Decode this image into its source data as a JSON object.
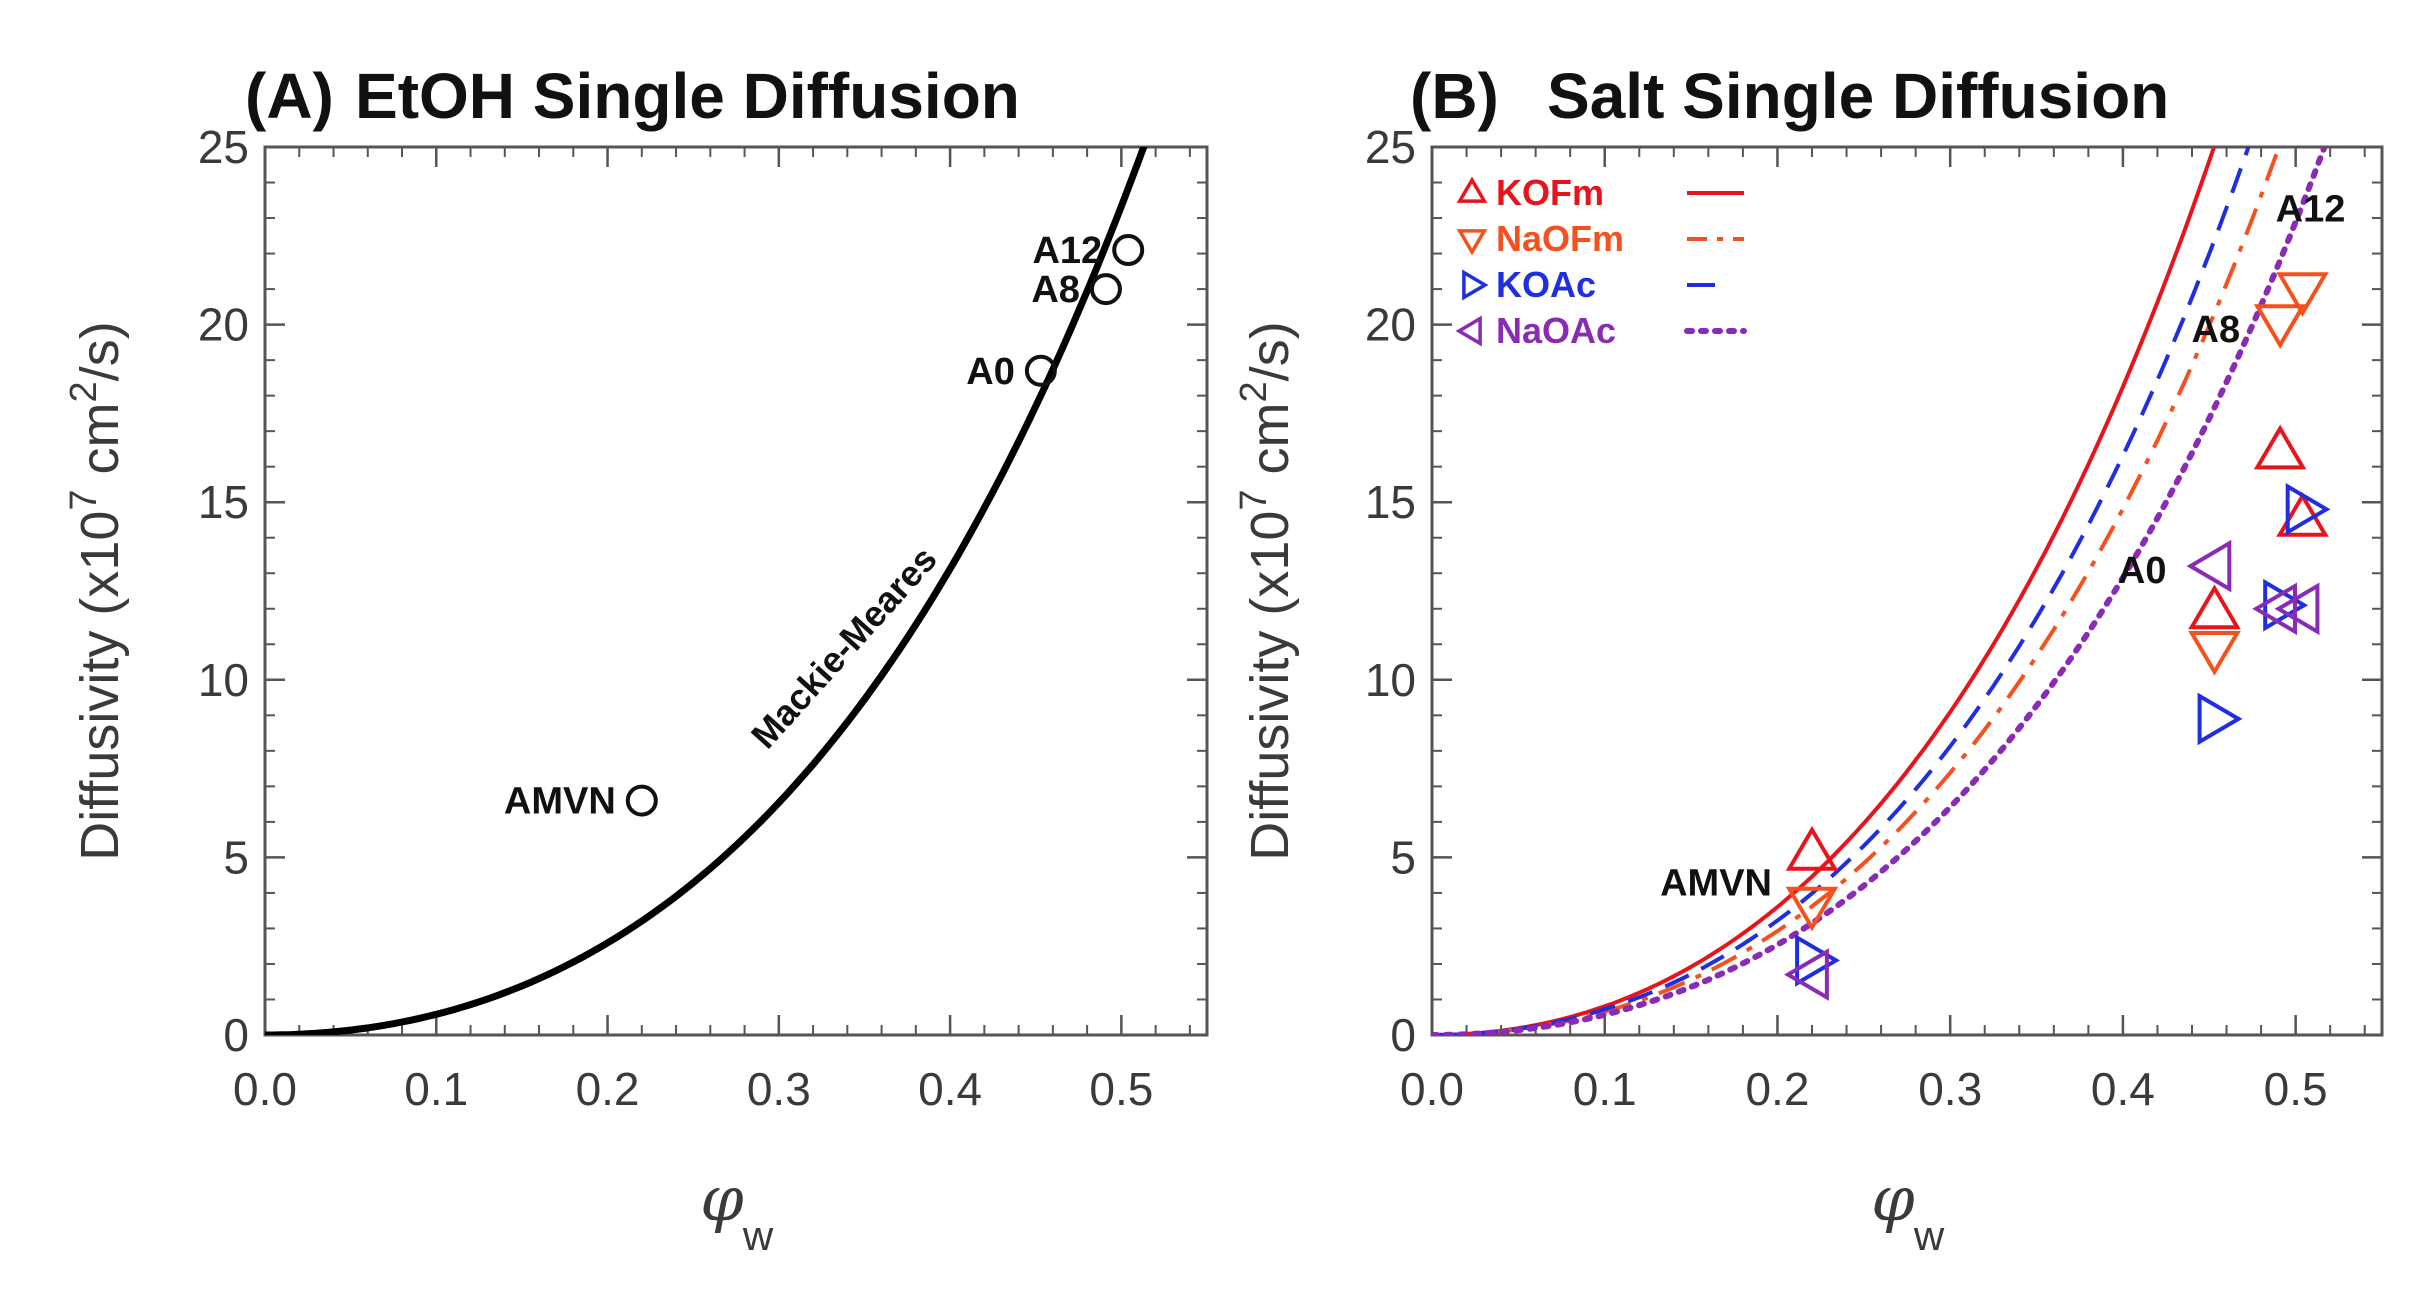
{
  "chart_data": [
    {
      "panel": "A",
      "type": "scatter",
      "title_tag": "(A)",
      "title": "EtOH Single Diffusion",
      "ylabel": "Diffusivity (x10",
      "ylabel_exp": "7",
      "ylabel_unit": "cm",
      "ylabel_unit_exp": "2",
      "ylabel_tail": "/s)",
      "xlabel_symbol": "φ",
      "xlabel_sub": "w",
      "xlim": [
        0,
        0.55
      ],
      "ylim": [
        0,
        25
      ],
      "xticks": [
        "0.0",
        "0.1",
        "0.2",
        "0.3",
        "0.4",
        "0.5"
      ],
      "xtick_values": [
        0,
        0.1,
        0.2,
        0.3,
        0.4,
        0.5
      ],
      "yticks": [
        "0",
        "5",
        "10",
        "15",
        "20",
        "25"
      ],
      "ytick_values": [
        0,
        5,
        10,
        15,
        20,
        25
      ],
      "points": [
        {
          "label": "AMVN",
          "x": 0.22,
          "y": 6.6
        },
        {
          "label": "A0",
          "x": 0.453,
          "y": 18.7
        },
        {
          "label": "A8",
          "x": 0.491,
          "y": 21.0
        },
        {
          "label": "A12",
          "x": 0.504,
          "y": 22.1
        }
      ],
      "curve": {
        "label": "Mackie-Meares",
        "color": "#000000",
        "coeff": 210
      }
    },
    {
      "panel": "B",
      "type": "scatter",
      "title_tag": "(B)",
      "title": "Salt Single Diffusion",
      "ylabel": "Diffusivity (x10",
      "ylabel_exp": "7",
      "ylabel_unit": "cm",
      "ylabel_unit_exp": "2",
      "ylabel_tail": "/s)",
      "xlabel_symbol": "φ",
      "xlabel_sub": "w",
      "xlim": [
        0,
        0.55
      ],
      "ylim": [
        0,
        25
      ],
      "xticks": [
        "0.0",
        "0.1",
        "0.2",
        "0.3",
        "0.4",
        "0.5"
      ],
      "xtick_values": [
        0,
        0.1,
        0.2,
        0.3,
        0.4,
        0.5
      ],
      "yticks": [
        "0",
        "5",
        "10",
        "15",
        "20",
        "25"
      ],
      "ytick_values": [
        0,
        5,
        10,
        15,
        20,
        25
      ],
      "legend_position": "top-left",
      "annotations": [
        {
          "text": "AMVN",
          "x": 0.22,
          "y": 4.3
        },
        {
          "text": "A0",
          "x": 0.453,
          "y": 13.2
        },
        {
          "text": "A8",
          "x": 0.491,
          "y": 20.1
        },
        {
          "text": "A12",
          "x": 0.504,
          "y": 22.2
        }
      ],
      "series": [
        {
          "name": "KOFm",
          "marker": "triangle-up",
          "color": "#e8141c",
          "line": "solid",
          "coeff": 292,
          "points": [
            [
              0.22,
              5.1
            ],
            [
              0.453,
              11.9
            ],
            [
              0.491,
              16.4
            ],
            [
              0.504,
              14.5
            ]
          ]
        },
        {
          "name": "NaOFm",
          "marker": "triangle-down",
          "color": "#f4511e",
          "line": "dashdot",
          "coeff": 237,
          "points": [
            [
              0.22,
              3.7
            ],
            [
              0.453,
              10.9
            ],
            [
              0.491,
              20.1
            ],
            [
              0.504,
              21.0
            ]
          ]
        },
        {
          "name": "KOAc",
          "marker": "triangle-right",
          "color": "#1f2fe0",
          "line": "dash",
          "coeff": 261,
          "points": [
            [
              0.22,
              2.1
            ],
            [
              0.453,
              8.9
            ],
            [
              0.491,
              12.1
            ],
            [
              0.504,
              14.8
            ]
          ]
        },
        {
          "name": "NaOAc",
          "marker": "triangle-left",
          "color": "#8a2bb5",
          "line": "dotted",
          "coeff": 206,
          "points": [
            [
              0.22,
              1.7
            ],
            [
              0.453,
              13.2
            ],
            [
              0.491,
              12.0
            ],
            [
              0.504,
              12.0
            ]
          ]
        }
      ]
    }
  ]
}
